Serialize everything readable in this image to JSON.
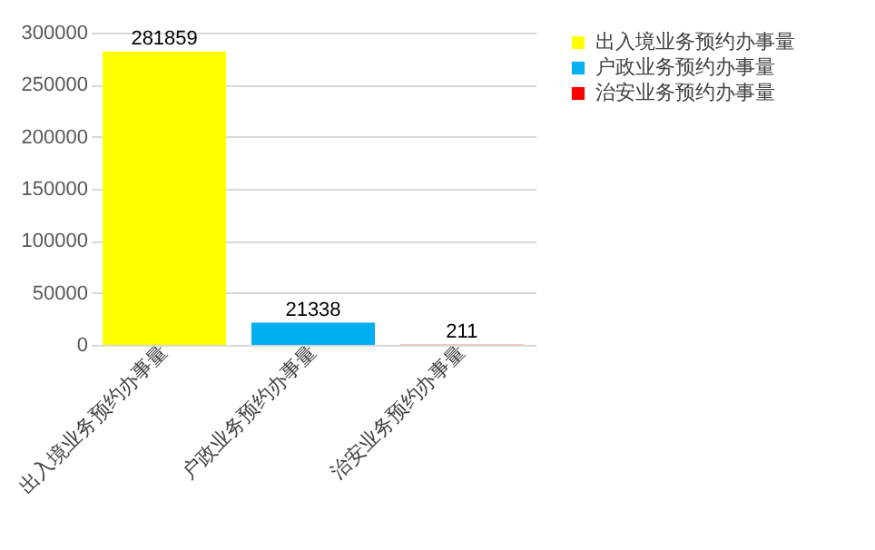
{
  "chart_data": {
    "type": "bar",
    "categories": [
      "出入境业务预约办事量",
      "户政业务预约办事量",
      "治安业务预约办事量"
    ],
    "series": [
      {
        "name": "出入境业务预约办事量",
        "color": "#ffff00",
        "values": [
          281859,
          null,
          null
        ]
      },
      {
        "name": "户政业务预约办事量",
        "color": "#00b0f0",
        "values": [
          null,
          21338,
          null
        ]
      },
      {
        "name": "治安业务预约办事量",
        "color": "#ff0000",
        "values": [
          null,
          null,
          211
        ]
      }
    ],
    "stacked": true,
    "ylim": [
      0,
      300000
    ],
    "yticks": [
      0,
      50000,
      100000,
      150000,
      200000,
      250000,
      300000
    ],
    "grid": "y",
    "legend": "right",
    "data_labels": true
  }
}
